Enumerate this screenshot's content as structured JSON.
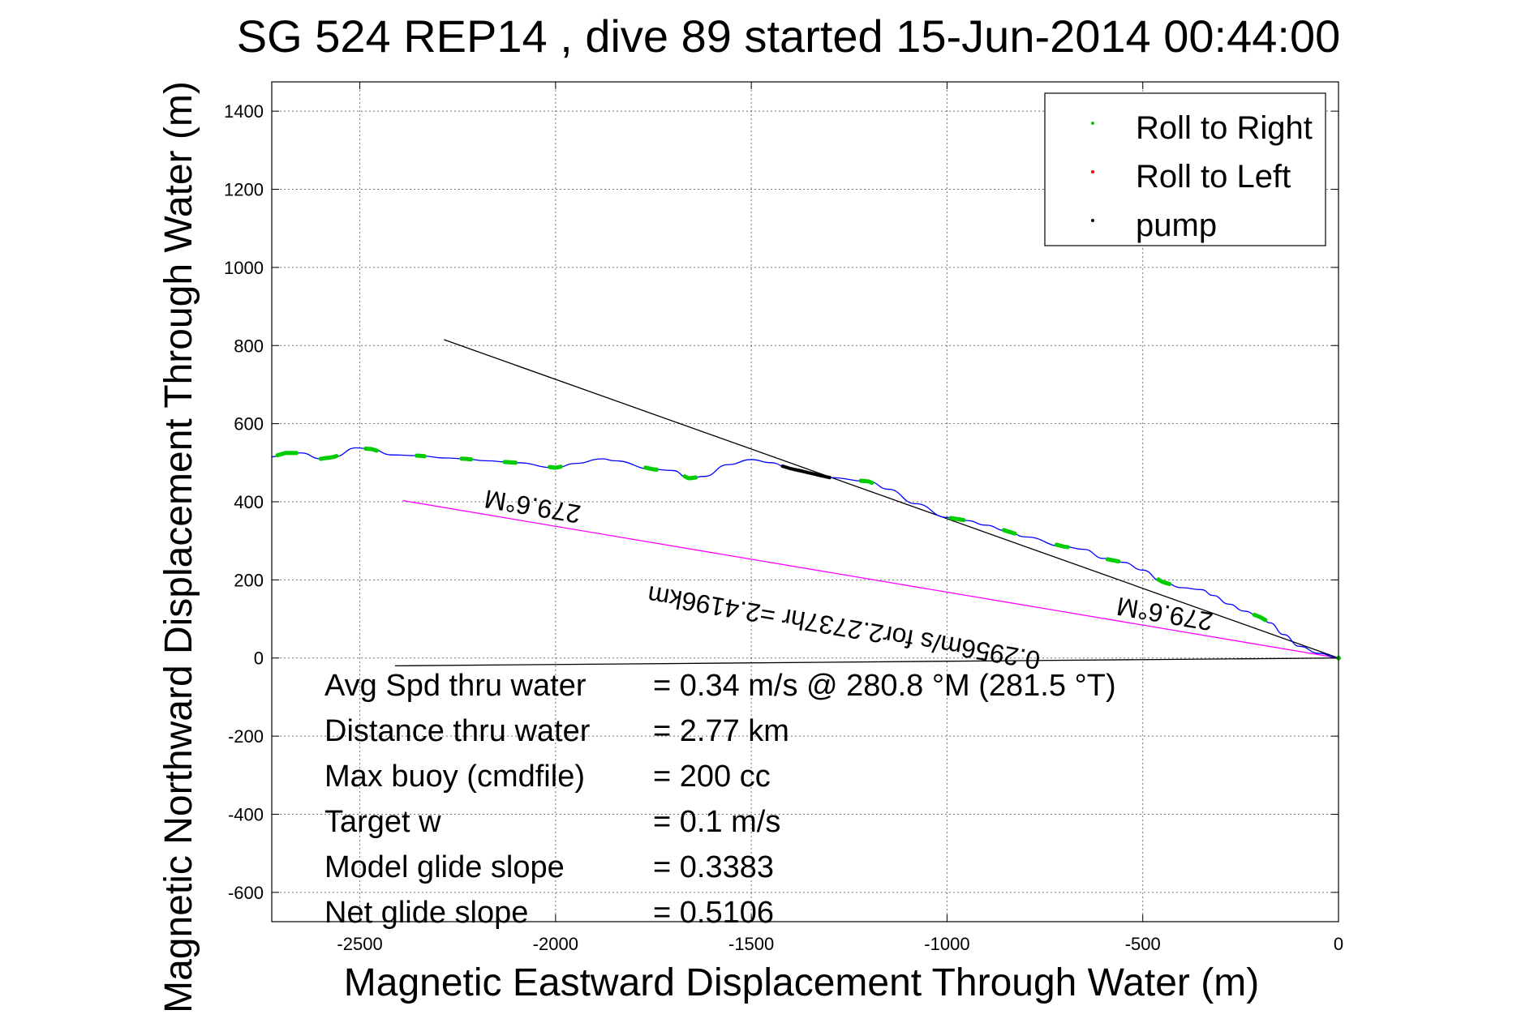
{
  "chart_data": {
    "type": "line",
    "title": "SG 524   REP14  , dive 89 started 15-Jun-2014 00:44:00",
    "xlabel": "Magnetic Eastward Displacement Through Water (m)",
    "ylabel": "Magnetic Northward Displacement Through Water (m)",
    "xlim": [
      -2725,
      0
    ],
    "ylim": [
      -675,
      1475
    ],
    "xticks": [
      -2500,
      -2000,
      -1500,
      -1000,
      -500,
      0
    ],
    "yticks": [
      -600,
      -400,
      -200,
      0,
      200,
      400,
      600,
      800,
      1000,
      1200,
      1400
    ],
    "grid": true,
    "legend_position": "top-right",
    "legend": [
      {
        "label": "Roll to Right",
        "color": "#00cc00"
      },
      {
        "label": "Roll to Left",
        "color": "#ff0000"
      },
      {
        "label": "pump",
        "color": "#000000"
      }
    ],
    "track": {
      "color": "#0000ff",
      "x": [
        -2725,
        -2690,
        -2650,
        -2600,
        -2565,
        -2510,
        -2470,
        -2420,
        -2350,
        -2280,
        -2230,
        -2180,
        -2100,
        -2000,
        -1950,
        -1880,
        -1850,
        -1750,
        -1700,
        -1660,
        -1620,
        -1560,
        -1500,
        -1450,
        -1400,
        -1300,
        -1200,
        -1150,
        -1080,
        -1000,
        -950,
        -900,
        -850,
        -800,
        -700,
        -650,
        -600,
        -550,
        -500,
        -450,
        -400,
        -350,
        -320,
        -280,
        -240,
        -200,
        -175,
        -140,
        -100,
        -50,
        0
      ],
      "y": [
        515,
        525,
        525,
        510,
        515,
        538,
        535,
        520,
        518,
        512,
        510,
        505,
        500,
        487,
        498,
        510,
        505,
        483,
        480,
        460,
        465,
        495,
        508,
        500,
        485,
        462,
        452,
        432,
        395,
        360,
        352,
        340,
        326,
        310,
        285,
        278,
        255,
        245,
        225,
        195,
        180,
        175,
        160,
        138,
        120,
        105,
        90,
        60,
        30,
        12,
        0
      ]
    },
    "roll_right_segments": [
      {
        "x": [
          -2710,
          -2660
        ]
      },
      {
        "x": [
          -2600,
          -2560
        ]
      },
      {
        "x": [
          -2485,
          -2455
        ]
      },
      {
        "x": [
          -2355,
          -2335
        ]
      },
      {
        "x": [
          -2240,
          -2215
        ]
      },
      {
        "x": [
          -2130,
          -2100
        ]
      },
      {
        "x": [
          -2015,
          -1985
        ]
      },
      {
        "x": [
          -1770,
          -1740
        ]
      },
      {
        "x": [
          -1670,
          -1640
        ]
      },
      {
        "x": [
          -1220,
          -1190
        ]
      },
      {
        "x": [
          -990,
          -955
        ]
      },
      {
        "x": [
          -855,
          -825
        ]
      },
      {
        "x": [
          -720,
          -690
        ]
      },
      {
        "x": [
          -590,
          -560
        ]
      },
      {
        "x": [
          -460,
          -430
        ]
      },
      {
        "x": [
          -215,
          -185
        ]
      }
    ],
    "pump_segment": {
      "x": [
        -1420,
        -1300
      ]
    },
    "lines": [
      {
        "name": "heading line",
        "color": "#000000",
        "x": [
          -2285,
          0
        ],
        "y": [
          815,
          0
        ]
      },
      {
        "name": "net displacement line",
        "color": "#ff00ff",
        "x": [
          -2390,
          0
        ],
        "y": [
          403,
          0
        ]
      },
      {
        "name": "reference line",
        "color": "#000000",
        "x": [
          -2410,
          0
        ],
        "y": [
          -20,
          0
        ]
      }
    ],
    "annotations": [
      {
        "text": "279.6°M",
        "x": -2055,
        "y": 410,
        "angle": 189.6
      },
      {
        "text": "0.2956m/s for2.2737hr =2.4196km",
        "x": -1260,
        "y": 100,
        "angle": 189.6
      },
      {
        "text": "279.6°M",
        "x": -440,
        "y": 135,
        "angle": 189.6
      }
    ],
    "stats": [
      {
        "label": "Avg Spd thru water",
        "value": "=  0.34 m/s @ 280.8 °M (281.5 °T)"
      },
      {
        "label": "Distance thru water",
        "value": "=  2.77 km"
      },
      {
        "label": "Max buoy (cmdfile)",
        "value": "= 200 cc"
      },
      {
        "label": "Target w",
        "value": "= 0.1 m/s"
      },
      {
        "label": "Model glide slope",
        "value": "= 0.3383"
      },
      {
        "label": "Net glide slope",
        "value": "= 0.5106"
      }
    ]
  }
}
